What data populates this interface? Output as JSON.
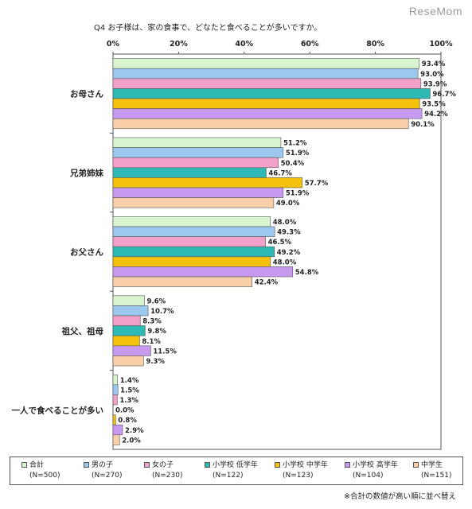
{
  "watermark": "ReseMom",
  "note": "※合計の数値が高い順に並べ替え",
  "chart_data": {
    "type": "bar",
    "orientation": "horizontal",
    "title": "Q4 お子様は、家の食事で、どなたと食べることが多いですか。",
    "categories": [
      "お母さん",
      "兄弟姉妹",
      "お父さん",
      "祖父、祖母",
      "一人で食べることが多い"
    ],
    "xlim": [
      0,
      100
    ],
    "x_ticks": [
      "0%",
      "20%",
      "40%",
      "60%",
      "80%",
      "100%"
    ],
    "grid": false,
    "legend_position": "bottom",
    "value_suffix": "%",
    "series": [
      {
        "name": "合計",
        "n": "(N=500)",
        "color": "#d8f5d0",
        "values": [
          93.4,
          51.2,
          48.0,
          9.6,
          1.4
        ]
      },
      {
        "name": "男の子",
        "n": "(N=270)",
        "color": "#9cc8f0",
        "values": [
          93.0,
          51.9,
          49.3,
          10.7,
          1.5
        ]
      },
      {
        "name": "女の子",
        "n": "(N=230)",
        "color": "#f3a0c8",
        "values": [
          93.9,
          50.4,
          46.5,
          8.3,
          1.3
        ]
      },
      {
        "name": "小学校 低学年",
        "n": "(N=122)",
        "color": "#2fb9b4",
        "values": [
          96.7,
          46.7,
          49.2,
          9.8,
          0.0
        ]
      },
      {
        "name": "小学校 中学年",
        "n": "(N=123)",
        "color": "#f4c20d",
        "values": [
          93.5,
          57.7,
          48.0,
          8.1,
          0.8
        ]
      },
      {
        "name": "小学校 高学年",
        "n": "(N=104)",
        "color": "#c79af0",
        "values": [
          94.2,
          51.9,
          54.8,
          11.5,
          2.9
        ]
      },
      {
        "name": "中学生",
        "n": "(N=151)",
        "color": "#f8cfa8",
        "values": [
          90.1,
          49.0,
          42.4,
          9.3,
          2.0
        ]
      }
    ]
  }
}
